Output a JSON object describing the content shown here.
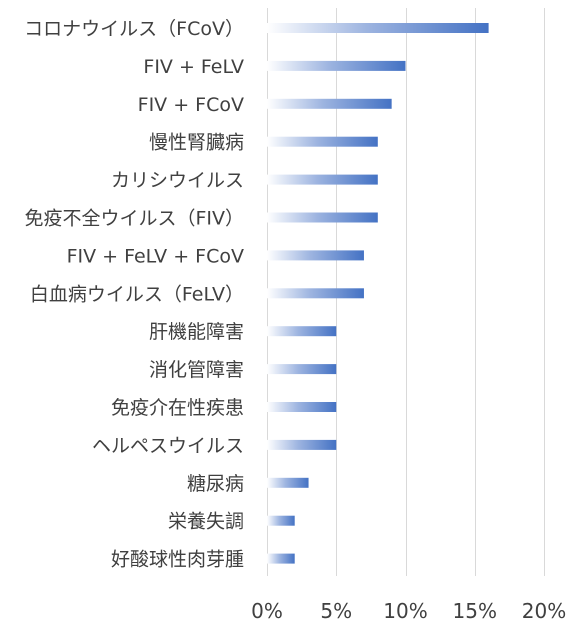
{
  "chart_data": {
    "type": "bar",
    "orientation": "horizontal",
    "categories": [
      "コロナウイルス（FCoV）",
      "FIV + FeLV",
      "FIV + FCoV",
      "慢性腎臓病",
      "カリシウイルス",
      "免疫不全ウイルス（FIV）",
      "FIV + FeLV + FCoV",
      "白血病ウイルス（FeLV）",
      "肝機能障害",
      "消化管障害",
      "免疫介在性疾患",
      "ヘルペスウイルス",
      "糖尿病",
      "栄養失調",
      "好酸球性肉芽腫"
    ],
    "values": [
      16,
      10,
      9,
      8,
      8,
      8,
      7,
      7,
      5,
      5,
      5,
      5,
      3,
      2,
      2
    ],
    "xlim": [
      0,
      20
    ],
    "xticks": [
      "0%",
      "5%",
      "10%",
      "15%",
      "20%"
    ],
    "xtick_values": [
      0,
      5,
      10,
      15,
      20
    ],
    "title": "",
    "xlabel": "",
    "ylabel": "",
    "grid": "vertical",
    "legend": "none",
    "bar_color": "#4472c4"
  }
}
